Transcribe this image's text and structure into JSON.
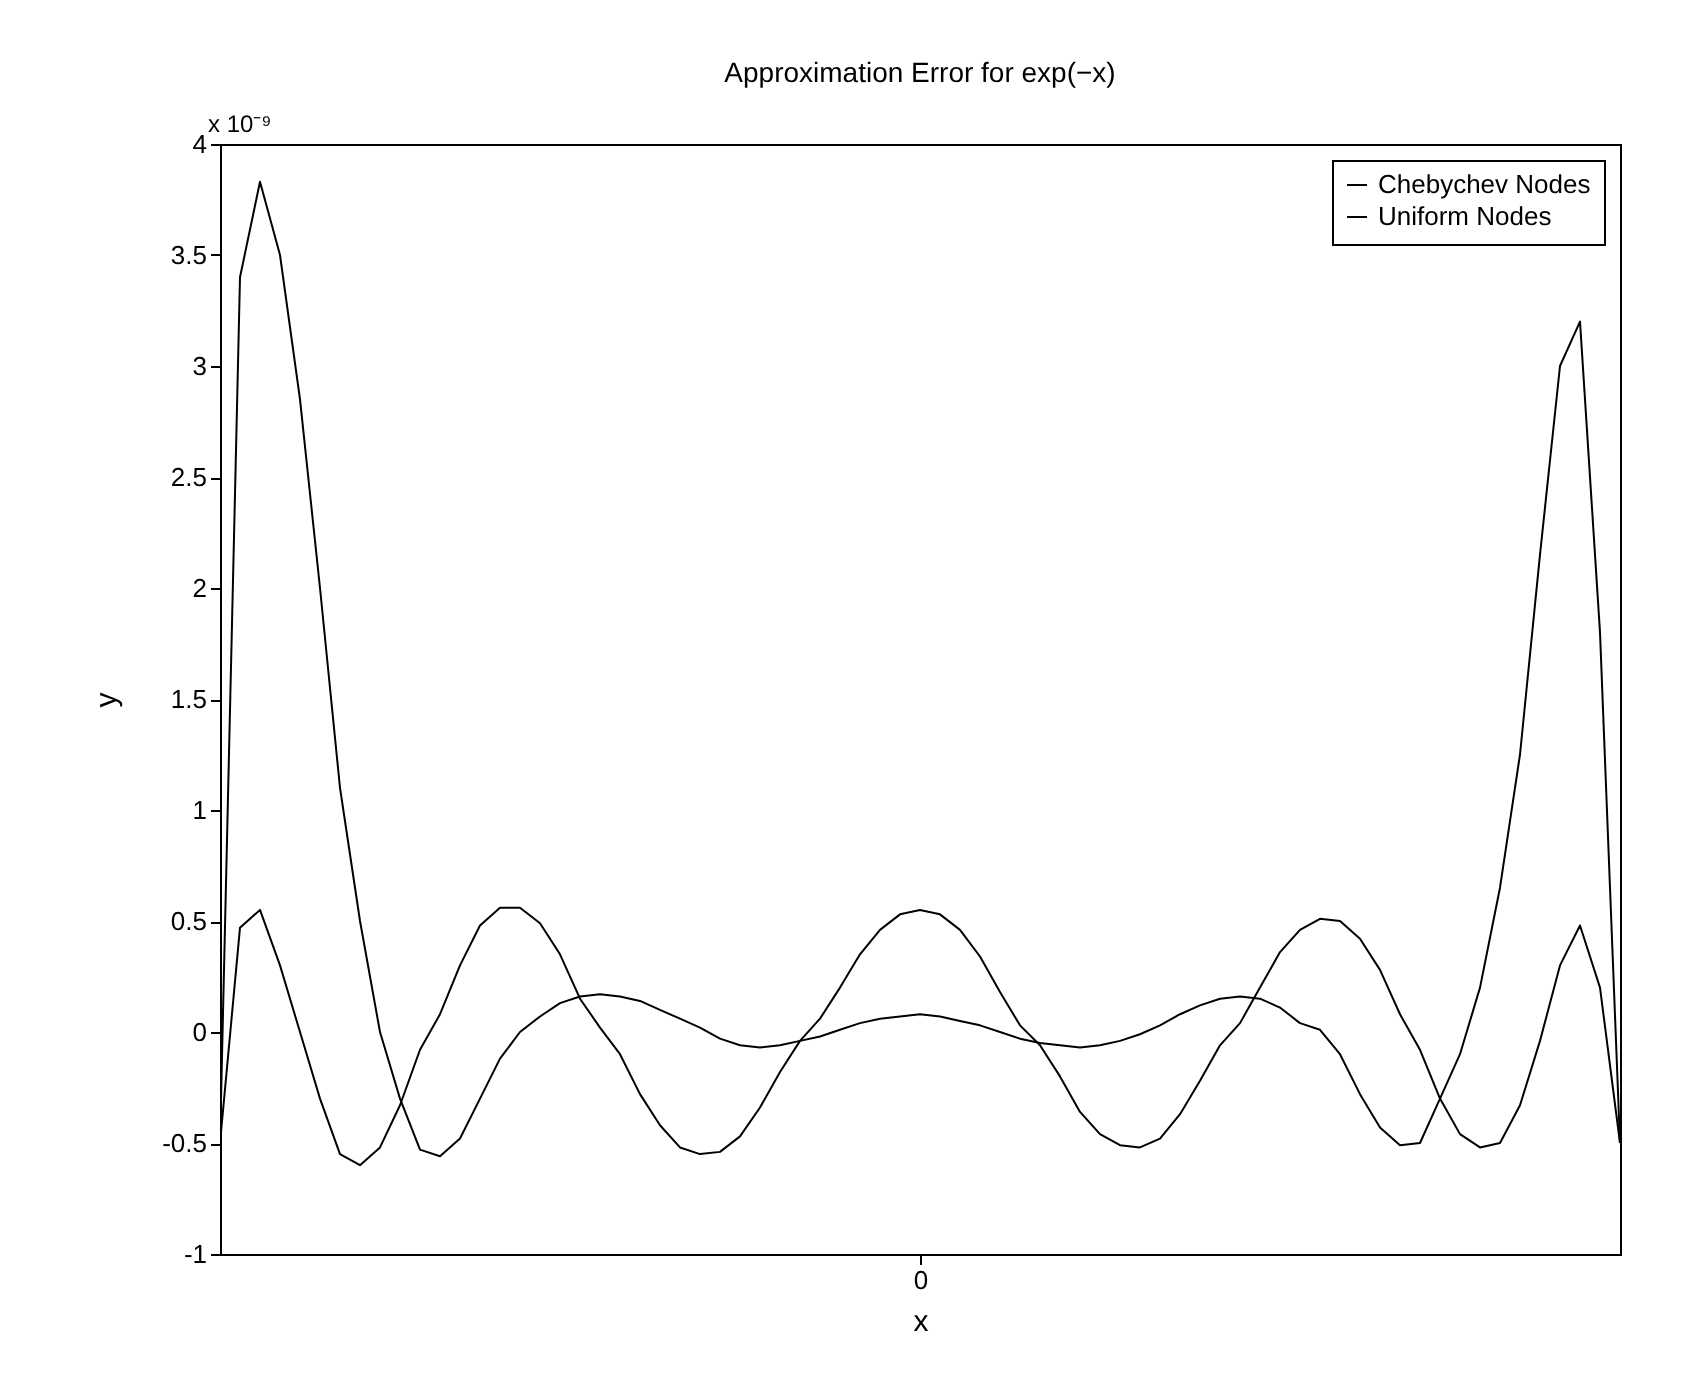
{
  "chart_data": {
    "type": "line",
    "title": "Approximation Error for exp(−x)",
    "xlabel": "x",
    "ylabel": "y",
    "annotations": [
      "x 10⁻⁹"
    ],
    "categories": [
      null,
      null,
      null,
      null,
      null,
      null,
      null,
      null,
      null,
      null,
      null,
      null,
      null,
      null,
      null,
      null,
      null,
      null,
      null,
      null,
      null,
      null,
      null,
      null,
      null,
      null,
      null,
      null,
      null,
      null,
      null,
      null,
      null,
      null,
      null,
      "0",
      null,
      null,
      null,
      null,
      null,
      null,
      null,
      null,
      null,
      null,
      null,
      null,
      null,
      null,
      null,
      null,
      null,
      null,
      null,
      null,
      null,
      null,
      null,
      null,
      null,
      null,
      null,
      null,
      null,
      null,
      null,
      null,
      null,
      null,
      null
    ],
    "ylim": [
      -1,
      4
    ],
    "yticks": [
      -1,
      -0.5,
      0,
      0.5,
      1,
      1.5,
      2,
      2.5,
      3,
      3.5,
      4
    ],
    "grid": false,
    "legend": "top right",
    "series": [
      {
        "name": "Chebychev Nodes",
        "color": "#000000",
        "values": [
          -0.5,
          0.47,
          0.55,
          0.3,
          0,
          -0.3,
          -0.55,
          -0.6,
          -0.52,
          -0.33,
          -0.08,
          0.08,
          0.3,
          0.48,
          0.56,
          0.56,
          0.49,
          0.35,
          0.15,
          0.02,
          -0.1,
          -0.28,
          -0.42,
          -0.52,
          -0.55,
          -0.54,
          -0.47,
          -0.34,
          -0.18,
          -0.04,
          0.06,
          0.2,
          0.35,
          0.46,
          0.53,
          0.55,
          0.53,
          0.46,
          0.34,
          0.18,
          0.03,
          -0.06,
          -0.2,
          -0.36,
          -0.46,
          -0.51,
          -0.52,
          -0.48,
          -0.37,
          -0.22,
          -0.06,
          0.04,
          0.2,
          0.36,
          0.46,
          0.51,
          0.5,
          0.42,
          0.28,
          0.08,
          -0.08,
          -0.3,
          -0.46,
          -0.52,
          -0.5,
          -0.33,
          -0.04,
          0.3,
          0.48,
          0.2,
          -0.5
        ]
      },
      {
        "name": "Uniform Nodes",
        "color": "#000000",
        "values": [
          -0.5,
          3.4,
          3.83,
          3.5,
          2.85,
          2,
          1.1,
          0.5,
          0,
          -0.3,
          -0.53,
          -0.56,
          -0.48,
          -0.3,
          -0.12,
          0,
          0.07,
          0.13,
          0.16,
          0.17,
          0.16,
          0.14,
          0.1,
          0.06,
          0.02,
          -0.03,
          -0.06,
          -0.07,
          -0.06,
          -0.04,
          -0.02,
          0.01,
          0.04,
          0.06,
          0.07,
          0.08,
          0.07,
          0.05,
          0.03,
          0,
          -0.03,
          -0.05,
          -0.06,
          -0.07,
          -0.06,
          -0.04,
          -0.01,
          0.03,
          0.08,
          0.12,
          0.15,
          0.16,
          0.15,
          0.11,
          0.04,
          0.01,
          -0.1,
          -0.28,
          -0.43,
          -0.51,
          -0.5,
          -0.3,
          -0.1,
          0.2,
          0.65,
          1.25,
          2.15,
          3,
          3.2,
          1.8,
          -0.5
        ]
      }
    ]
  }
}
